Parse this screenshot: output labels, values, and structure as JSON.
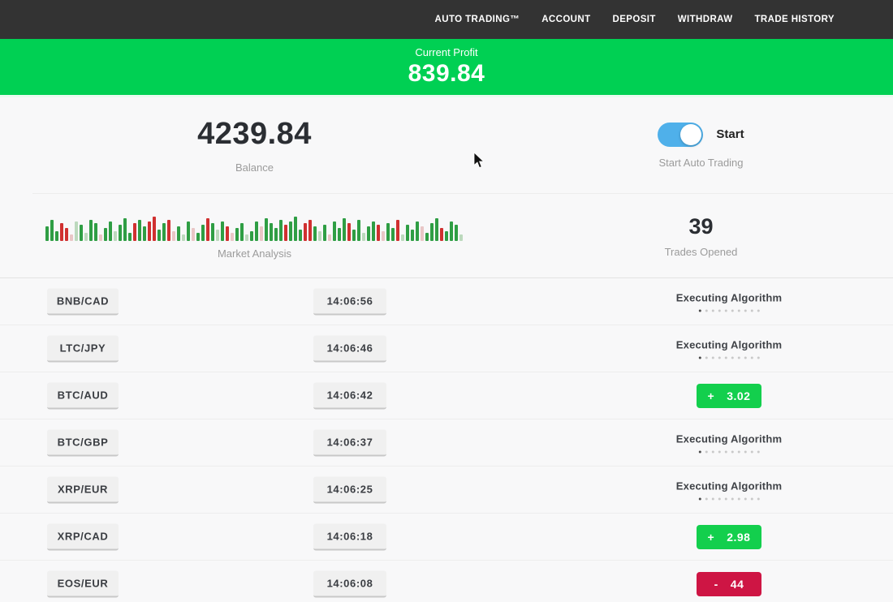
{
  "nav": {
    "items": [
      {
        "id": "auto-trading",
        "label": "AUTO TRADING™"
      },
      {
        "id": "account",
        "label": "ACCOUNT"
      },
      {
        "id": "deposit",
        "label": "DEPOSIT"
      },
      {
        "id": "withdraw",
        "label": "WITHDRAW"
      },
      {
        "id": "trade-history",
        "label": "TRADE HISTORY"
      }
    ]
  },
  "profit_banner": {
    "label": "Current Profit",
    "value": "839.84"
  },
  "stats": {
    "balance": {
      "value": "4239.84",
      "label": "Balance"
    },
    "auto_trading": {
      "toggle_label": "Start",
      "label": "Start Auto Trading",
      "toggle_on": true
    },
    "market_analysis": {
      "label": "Market Analysis"
    },
    "trades_opened": {
      "value": "39",
      "label": "Trades Opened"
    }
  },
  "chart_data": {
    "type": "bar",
    "title": "Market Analysis",
    "description": "decorative market-pulse strip of green/red mini bars, heights in px",
    "bars": [
      [
        18,
        "g"
      ],
      [
        26,
        "g"
      ],
      [
        12,
        "g"
      ],
      [
        22,
        "r"
      ],
      [
        16,
        "r"
      ],
      [
        8,
        "lr"
      ],
      [
        24,
        "lg"
      ],
      [
        20,
        "g"
      ],
      [
        10,
        "lg"
      ],
      [
        26,
        "g"
      ],
      [
        22,
        "g"
      ],
      [
        8,
        "lr"
      ],
      [
        16,
        "g"
      ],
      [
        24,
        "g"
      ],
      [
        12,
        "lg"
      ],
      [
        20,
        "g"
      ],
      [
        28,
        "g"
      ],
      [
        10,
        "g"
      ],
      [
        22,
        "r"
      ],
      [
        26,
        "g"
      ],
      [
        18,
        "g"
      ],
      [
        24,
        "r"
      ],
      [
        30,
        "r"
      ],
      [
        14,
        "g"
      ],
      [
        22,
        "g"
      ],
      [
        26,
        "r"
      ],
      [
        12,
        "lr"
      ],
      [
        18,
        "g"
      ],
      [
        8,
        "lg"
      ],
      [
        24,
        "g"
      ],
      [
        16,
        "lr"
      ],
      [
        10,
        "g"
      ],
      [
        20,
        "g"
      ],
      [
        28,
        "r"
      ],
      [
        22,
        "g"
      ],
      [
        14,
        "lg"
      ],
      [
        24,
        "g"
      ],
      [
        18,
        "r"
      ],
      [
        10,
        "lr"
      ],
      [
        16,
        "g"
      ],
      [
        22,
        "g"
      ],
      [
        8,
        "lg"
      ],
      [
        12,
        "g"
      ],
      [
        24,
        "g"
      ],
      [
        18,
        "lr"
      ],
      [
        28,
        "g"
      ],
      [
        22,
        "g"
      ],
      [
        16,
        "g"
      ],
      [
        26,
        "g"
      ],
      [
        20,
        "r"
      ],
      [
        24,
        "g"
      ],
      [
        30,
        "g"
      ],
      [
        14,
        "g"
      ],
      [
        22,
        "r"
      ],
      [
        26,
        "r"
      ],
      [
        18,
        "g"
      ],
      [
        12,
        "lg"
      ],
      [
        20,
        "g"
      ],
      [
        8,
        "lr"
      ],
      [
        24,
        "g"
      ],
      [
        16,
        "g"
      ],
      [
        28,
        "g"
      ],
      [
        22,
        "r"
      ],
      [
        14,
        "g"
      ],
      [
        26,
        "g"
      ],
      [
        10,
        "lg"
      ],
      [
        18,
        "g"
      ],
      [
        24,
        "g"
      ],
      [
        20,
        "r"
      ],
      [
        12,
        "lr"
      ],
      [
        22,
        "g"
      ],
      [
        16,
        "g"
      ],
      [
        26,
        "r"
      ],
      [
        8,
        "lg"
      ],
      [
        20,
        "g"
      ],
      [
        14,
        "g"
      ],
      [
        24,
        "g"
      ],
      [
        18,
        "lr"
      ],
      [
        10,
        "g"
      ],
      [
        22,
        "g"
      ],
      [
        28,
        "g"
      ],
      [
        16,
        "r"
      ],
      [
        12,
        "g"
      ],
      [
        24,
        "g"
      ],
      [
        20,
        "g"
      ],
      [
        8,
        "lg"
      ],
      [
        18,
        "r"
      ],
      [
        14,
        "g"
      ]
    ]
  },
  "trades": [
    {
      "pair": "BNB/CAD",
      "time": "14:06:56",
      "status": "executing",
      "status_text": "Executing Algorithm"
    },
    {
      "pair": "LTC/JPY",
      "time": "14:06:46",
      "status": "executing",
      "status_text": "Executing Algorithm"
    },
    {
      "pair": "BTC/AUD",
      "time": "14:06:42",
      "status": "profit",
      "sign": "+",
      "value": "3.02"
    },
    {
      "pair": "BTC/GBP",
      "time": "14:06:37",
      "status": "executing",
      "status_text": "Executing Algorithm"
    },
    {
      "pair": "XRP/EUR",
      "time": "14:06:25",
      "status": "executing",
      "status_text": "Executing Algorithm"
    },
    {
      "pair": "XRP/CAD",
      "time": "14:06:18",
      "status": "profit",
      "sign": "+",
      "value": "2.98"
    },
    {
      "pair": "EOS/EUR",
      "time": "14:06:08",
      "status": "loss",
      "sign": "-",
      "value": "44"
    }
  ],
  "colors": {
    "nav_bg": "#333333",
    "banner_green": "#00d053",
    "toggle_blue": "#4fb0ea",
    "profit_green": "#13cf4d",
    "loss_red": "#ce1544",
    "bar_green": "#2f9e44",
    "bar_red": "#d03030"
  }
}
